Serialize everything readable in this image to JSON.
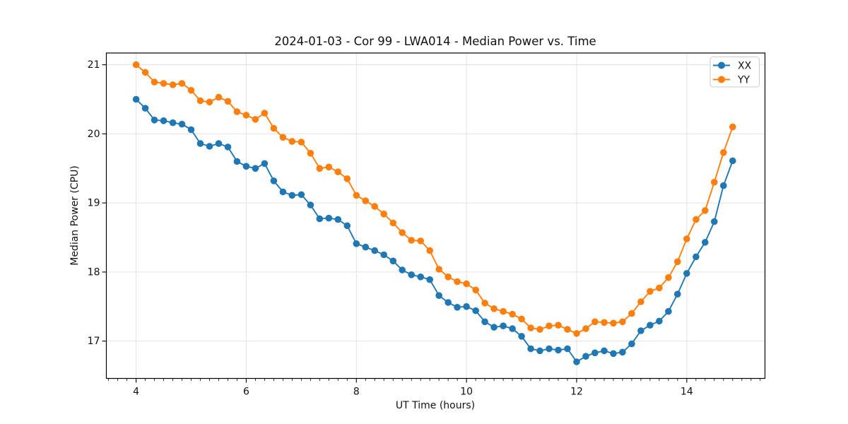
{
  "chart_data": {
    "type": "line",
    "title": "2024-01-03 - Cor 99 - LWA014 - Median Power vs. Time",
    "xlabel": "UT Time (hours)",
    "ylabel": "Median Power (CPU)",
    "xlim": [
      3.46,
      15.42
    ],
    "ylim": [
      16.46,
      21.17
    ],
    "xticks": [
      4,
      6,
      8,
      10,
      12,
      14
    ],
    "yticks": [
      17,
      18,
      19,
      20,
      21
    ],
    "x_minor_step": 0.1667,
    "grid": true,
    "grid_color": "#e0e0e0",
    "background": "#ffffff",
    "legend_position": "upper right",
    "x": [
      4,
      4.167,
      4.333,
      4.5,
      4.667,
      4.833,
      5,
      5.167,
      5.333,
      5.5,
      5.667,
      5.833,
      6,
      6.167,
      6.333,
      6.5,
      6.667,
      6.833,
      7,
      7.167,
      7.333,
      7.5,
      7.667,
      7.833,
      8,
      8.167,
      8.333,
      8.5,
      8.667,
      8.833,
      9,
      9.167,
      9.333,
      9.5,
      9.667,
      9.833,
      10,
      10.167,
      10.333,
      10.5,
      10.667,
      10.833,
      11,
      11.167,
      11.333,
      11.5,
      11.667,
      11.833,
      12,
      12.167,
      12.333,
      12.5,
      12.667,
      12.833,
      13,
      13.167,
      13.333,
      13.5,
      13.667,
      13.833,
      14,
      14.167,
      14.333,
      14.5,
      14.667,
      14.833
    ],
    "series": [
      {
        "name": "XX",
        "color": "#1f77b4",
        "values": [
          20.5,
          20.37,
          20.2,
          20.19,
          20.16,
          20.14,
          20.06,
          19.86,
          19.82,
          19.86,
          19.81,
          19.6,
          19.53,
          19.5,
          19.57,
          19.32,
          19.16,
          19.11,
          19.12,
          18.97,
          18.77,
          18.78,
          18.76,
          18.67,
          18.41,
          18.36,
          18.31,
          18.25,
          18.16,
          18.03,
          17.96,
          17.93,
          17.89,
          17.66,
          17.56,
          17.49,
          17.5,
          17.44,
          17.28,
          17.2,
          17.22,
          17.18,
          17.07,
          16.89,
          16.86,
          16.89,
          16.87,
          16.89,
          16.7,
          16.78,
          16.83,
          16.86,
          16.82,
          16.84,
          16.96,
          17.15,
          17.23,
          17.29,
          17.43,
          17.68,
          17.98,
          18.22,
          18.43,
          18.73,
          19.25,
          19.61
        ]
      },
      {
        "name": "YY",
        "color": "#ff7f0e",
        "values": [
          21,
          20.89,
          20.75,
          20.73,
          20.71,
          20.73,
          20.63,
          20.48,
          20.46,
          20.53,
          20.47,
          20.32,
          20.27,
          20.21,
          20.3,
          20.08,
          19.95,
          19.89,
          19.88,
          19.72,
          19.5,
          19.52,
          19.45,
          19.35,
          19.11,
          19.03,
          18.95,
          18.84,
          18.71,
          18.57,
          18.46,
          18.45,
          18.31,
          18.04,
          17.93,
          17.86,
          17.83,
          17.74,
          17.55,
          17.47,
          17.43,
          17.39,
          17.32,
          17.19,
          17.17,
          17.22,
          17.23,
          17.17,
          17.11,
          17.18,
          17.28,
          17.27,
          17.26,
          17.28,
          17.4,
          17.57,
          17.72,
          17.77,
          17.92,
          18.15,
          18.48,
          18.76,
          18.89,
          19.3,
          19.73,
          20.1
        ]
      }
    ]
  }
}
